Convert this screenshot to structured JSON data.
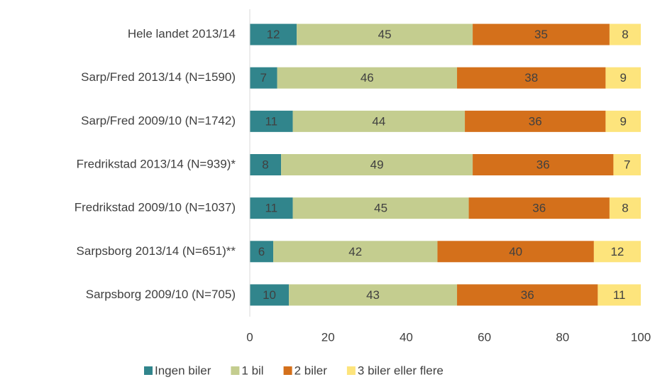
{
  "chart_data": {
    "type": "bar",
    "orientation": "horizontal",
    "stacked": true,
    "categories": [
      "Hele landet 2013/14",
      "Sarp/Fred 2013/14 (N=1590)",
      "Sarp/Fred 2009/10 (N=1742)",
      "Fredrikstad 2013/14 (N=939)*",
      "Fredrikstad 2009/10 (N=1037)",
      "Sarpsborg 2013/14 (N=651)**",
      "Sarpsborg 2009/10 (N=705)"
    ],
    "series": [
      {
        "name": "Ingen biler",
        "color": "#31858c",
        "values": [
          12,
          7,
          11,
          8,
          11,
          6,
          10
        ]
      },
      {
        "name": "1 bil",
        "color": "#c4cd8f",
        "values": [
          45,
          46,
          44,
          49,
          45,
          42,
          43
        ]
      },
      {
        "name": "2 biler",
        "color": "#d4701b",
        "values": [
          35,
          38,
          36,
          36,
          36,
          40,
          36
        ]
      },
      {
        "name": "3 biler eller flere",
        "color": "#fde47c",
        "values": [
          8,
          9,
          9,
          7,
          8,
          12,
          11
        ]
      }
    ],
    "xlim": [
      0,
      100
    ],
    "xticks": [
      0,
      20,
      40,
      60,
      80,
      100
    ],
    "grid": false,
    "legend": "bottom"
  }
}
